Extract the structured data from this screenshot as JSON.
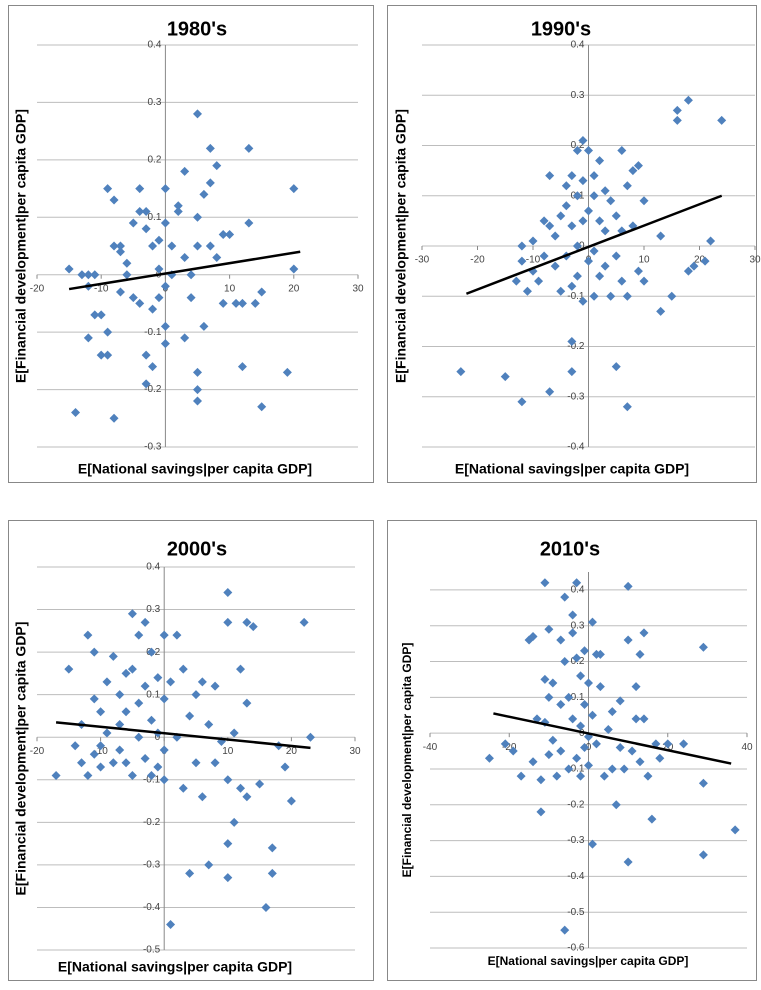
{
  "chart_data": [
    {
      "type": "scatter",
      "title": "1980's",
      "x_label": "E[National savings|per capita GDP]",
      "y_label": "E[Financial development|per capita GDP]",
      "color": "#4f81bd",
      "xlim": [
        -20,
        30
      ],
      "ylim": [
        -0.3,
        0.4
      ],
      "xticks": [
        -20,
        -10,
        0,
        10,
        20,
        30
      ],
      "yticks": [
        -0.3,
        -0.2,
        -0.1,
        0,
        0.1,
        0.2,
        0.3,
        0.4
      ],
      "x": [
        -15,
        -13,
        -12,
        -11,
        -12,
        -14,
        -12,
        -11,
        -10,
        -10,
        -9,
        -9,
        -9,
        -8,
        -8,
        -7,
        -7,
        -8,
        -7,
        -6,
        -6,
        -5,
        -5,
        -4,
        -4,
        -4,
        -3,
        -3,
        -3,
        -3,
        -2,
        -2,
        -2,
        -1,
        -1,
        -1,
        0,
        0,
        0,
        0,
        0,
        1,
        1,
        2,
        2,
        3,
        3,
        3,
        4,
        4,
        5,
        5,
        5,
        5,
        5,
        5,
        6,
        6,
        7,
        7,
        7,
        8,
        8,
        9,
        9,
        10,
        11,
        12,
        12,
        13,
        13,
        14,
        15,
        15,
        19,
        20,
        20
      ],
      "values": [
        0.01,
        0,
        0,
        0,
        -0.02,
        -0.24,
        -0.11,
        -0.07,
        -0.07,
        -0.14,
        -0.14,
        -0.1,
        0.15,
        0.13,
        0.05,
        0.05,
        0.04,
        -0.25,
        -0.03,
        0.02,
        0,
        0.09,
        -0.04,
        0.11,
        0.15,
        -0.05,
        0.11,
        0.08,
        -0.14,
        -0.19,
        0.05,
        -0.06,
        -0.16,
        0.06,
        0.01,
        -0.04,
        0.15,
        0.09,
        -0.02,
        -0.09,
        -0.12,
        0.05,
        0,
        0.12,
        0.11,
        0.18,
        0.03,
        -0.11,
        0,
        -0.04,
        0.28,
        0.1,
        0.05,
        -0.17,
        -0.2,
        -0.22,
        0.14,
        -0.09,
        0.16,
        0.22,
        0.05,
        0.19,
        0.03,
        0.07,
        -0.05,
        0.07,
        -0.05,
        -0.05,
        -0.16,
        0.22,
        0.09,
        -0.05,
        -0.03,
        -0.23,
        -0.17,
        0.15,
        0.01
      ],
      "trend_line": {
        "x": [
          -15,
          21
        ],
        "values": [
          -0.025,
          0.04
        ]
      }
    },
    {
      "type": "scatter",
      "title": "1990's",
      "x_label": "E[National savings|per capita GDP]",
      "y_label": "E[Financial development|per capita GDP]",
      "color": "#4f81bd",
      "xlim": [
        -30,
        30
      ],
      "ylim": [
        -0.4,
        0.4
      ],
      "xticks": [
        -30,
        -20,
        -10,
        0,
        10,
        20,
        30
      ],
      "yticks": [
        -0.4,
        -0.3,
        -0.2,
        -0.1,
        0,
        0.1,
        0.2,
        0.3,
        0.4
      ],
      "x": [
        -23,
        -15,
        -12,
        -13,
        -12,
        -12,
        -11,
        -10,
        -10,
        -9,
        -8,
        -8,
        -7,
        -7,
        -7,
        -6,
        -6,
        -5,
        -5,
        -4,
        -4,
        -4,
        -3,
        -3,
        -3,
        -3,
        -3,
        -2,
        -2,
        -2,
        -2,
        -1,
        -1,
        -1,
        -1,
        0,
        0,
        0,
        1,
        1,
        1,
        1,
        2,
        2,
        2,
        3,
        3,
        3,
        4,
        4,
        5,
        5,
        5,
        6,
        6,
        6,
        7,
        7,
        7,
        8,
        8,
        9,
        9,
        10,
        10,
        13,
        13,
        15,
        16,
        16,
        18,
        18,
        19,
        21,
        22,
        24
      ],
      "values": [
        -0.25,
        -0.26,
        -0.31,
        -0.07,
        -0.03,
        0,
        -0.09,
        -0.05,
        0.01,
        -0.07,
        -0.02,
        0.05,
        0.14,
        0.04,
        -0.29,
        -0.04,
        0.02,
        0.06,
        -0.09,
        0.12,
        0.08,
        -0.02,
        0.14,
        0.04,
        -0.08,
        -0.19,
        -0.25,
        0.19,
        0.1,
        0,
        -0.06,
        0.21,
        0.13,
        0.05,
        -0.11,
        0.19,
        0.07,
        -0.03,
        0.14,
        0.1,
        -0.01,
        -0.1,
        0.17,
        0.05,
        -0.06,
        0.11,
        0.03,
        -0.04,
        0.09,
        -0.1,
        0.06,
        -0.02,
        -0.24,
        0.19,
        0.03,
        -0.07,
        0.12,
        -0.1,
        -0.32,
        0.15,
        0.04,
        0.16,
        -0.05,
        -0.07,
        0.09,
        -0.13,
        0.02,
        -0.1,
        0.27,
        0.25,
        0.29,
        -0.05,
        -0.04,
        -0.03,
        0.01,
        0.25
      ],
      "trend_line": {
        "x": [
          -22,
          24
        ],
        "values": [
          -0.095,
          0.1
        ]
      }
    },
    {
      "type": "scatter",
      "title": "2000's",
      "x_label": "E[National savings|per capita GDP]",
      "y_label": "E[Financial development|per capita GDP]",
      "color": "#4f81bd",
      "xlim": [
        -20,
        30
      ],
      "ylim": [
        -0.5,
        0.4
      ],
      "xticks": [
        -20,
        -10,
        0,
        10,
        20,
        30
      ],
      "yticks": [
        -0.5,
        -0.4,
        -0.3,
        -0.2,
        -0.1,
        0,
        0.1,
        0.2,
        0.3,
        0.4
      ],
      "x": [
        -17,
        -15,
        -14,
        -13,
        -13,
        -12,
        -12,
        -11,
        -11,
        -11,
        -10,
        -10,
        -10,
        -9,
        -9,
        -8,
        -8,
        -7,
        -7,
        -7,
        -6,
        -6,
        -6,
        -5,
        -5,
        -5,
        -4,
        -4,
        -4,
        -3,
        -3,
        -3,
        -2,
        -2,
        -2,
        -1,
        -1,
        -1,
        0,
        0,
        0,
        0,
        1,
        1,
        2,
        2,
        3,
        3,
        4,
        4,
        5,
        5,
        6,
        6,
        7,
        7,
        8,
        8,
        9,
        10,
        10,
        10,
        10,
        10,
        11,
        11,
        12,
        12,
        13,
        13,
        13,
        14,
        15,
        16,
        17,
        17,
        18,
        19,
        20,
        22,
        23
      ],
      "values": [
        -0.09,
        0.16,
        -0.02,
        0.03,
        -0.06,
        -0.09,
        0.24,
        0.2,
        0.09,
        -0.04,
        0.06,
        -0.02,
        -0.07,
        0.13,
        0.01,
        0.19,
        -0.06,
        0.1,
        0.03,
        -0.03,
        0.15,
        0.06,
        -0.06,
        0.29,
        0.16,
        -0.09,
        0.24,
        0.08,
        0,
        0.27,
        0.12,
        -0.05,
        0.2,
        0.04,
        -0.09,
        0.14,
        0.01,
        -0.07,
        0.24,
        0.09,
        -0.03,
        -0.1,
        0.13,
        -0.44,
        0.24,
        0,
        0.16,
        -0.12,
        0.05,
        -0.32,
        0.1,
        -0.06,
        0.13,
        -0.14,
        0.03,
        -0.3,
        0.12,
        -0.06,
        -0.01,
        0.34,
        0.27,
        -0.1,
        -0.25,
        -0.33,
        -0.2,
        0.01,
        0.16,
        -0.12,
        0.27,
        0.08,
        -0.14,
        0.26,
        -0.11,
        -0.4,
        -0.26,
        -0.32,
        -0.02,
        -0.07,
        -0.15,
        0.27,
        0
      ],
      "trend_line": {
        "x": [
          -17,
          23
        ],
        "values": [
          0.035,
          -0.025
        ]
      }
    },
    {
      "type": "scatter",
      "title": "2010's",
      "x_label": "E[National savings|per capita GDP]",
      "y_label": "E[Financial development|per capita GDP]",
      "color": "#4f81bd",
      "xlim": [
        -40,
        40
      ],
      "ylim": [
        -0.6,
        0.45
      ],
      "xticks": [
        -40,
        -20,
        0,
        20,
        40
      ],
      "yticks": [
        -0.6,
        -0.5,
        -0.4,
        -0.3,
        -0.2,
        -0.1,
        0,
        0.1,
        0.2,
        0.3,
        0.4
      ],
      "x": [
        -25,
        -21,
        -19,
        -17,
        -15,
        -14,
        -14,
        -13,
        -12,
        -12,
        -11,
        -11,
        -11,
        -10,
        -10,
        -10,
        -9,
        -9,
        -8,
        -7,
        -7,
        -7,
        -6,
        -6,
        -6,
        -5,
        -5,
        -4,
        -4,
        -4,
        -3,
        -3,
        -3,
        -2,
        -2,
        -2,
        -1,
        -1,
        -1,
        0,
        0,
        0,
        1,
        1,
        1,
        2,
        2,
        3,
        3,
        4,
        5,
        6,
        6,
        7,
        8,
        8,
        9,
        10,
        10,
        11,
        12,
        12,
        13,
        13,
        14,
        14,
        15,
        16,
        17,
        18,
        20,
        24,
        29,
        29,
        29,
        37,
        10
      ],
      "values": [
        -0.07,
        -0.03,
        -0.05,
        -0.12,
        0.26,
        0.27,
        -0.08,
        0.04,
        -0.22,
        -0.13,
        0.42,
        0.15,
        0.03,
        0.29,
        0.1,
        -0.06,
        0.14,
        -0.02,
        -0.12,
        0.26,
        0.08,
        -0.05,
        -0.55,
        0.38,
        0.2,
        0.1,
        -0.1,
        0.33,
        0.28,
        0.04,
        0.42,
        0.21,
        -0.07,
        0.16,
        0.02,
        -0.12,
        0.23,
        0.08,
        -0.04,
        0.14,
        -0.01,
        -0.09,
        0.31,
        0.05,
        -0.31,
        0.22,
        -0.03,
        0.22,
        0.13,
        -0.12,
        0.01,
        0.06,
        -0.1,
        -0.2,
        0.09,
        -0.04,
        -0.1,
        0.41,
        0.26,
        -0.05,
        0.13,
        0.04,
        0.22,
        -0.08,
        0.28,
        0.04,
        -0.12,
        -0.24,
        -0.03,
        -0.07,
        -0.03,
        -0.03,
        0.24,
        -0.14,
        -0.34,
        -0.27,
        -0.36
      ],
      "trend_line": {
        "x": [
          -24,
          36
        ],
        "values": [
          0.055,
          -0.085
        ]
      }
    }
  ]
}
